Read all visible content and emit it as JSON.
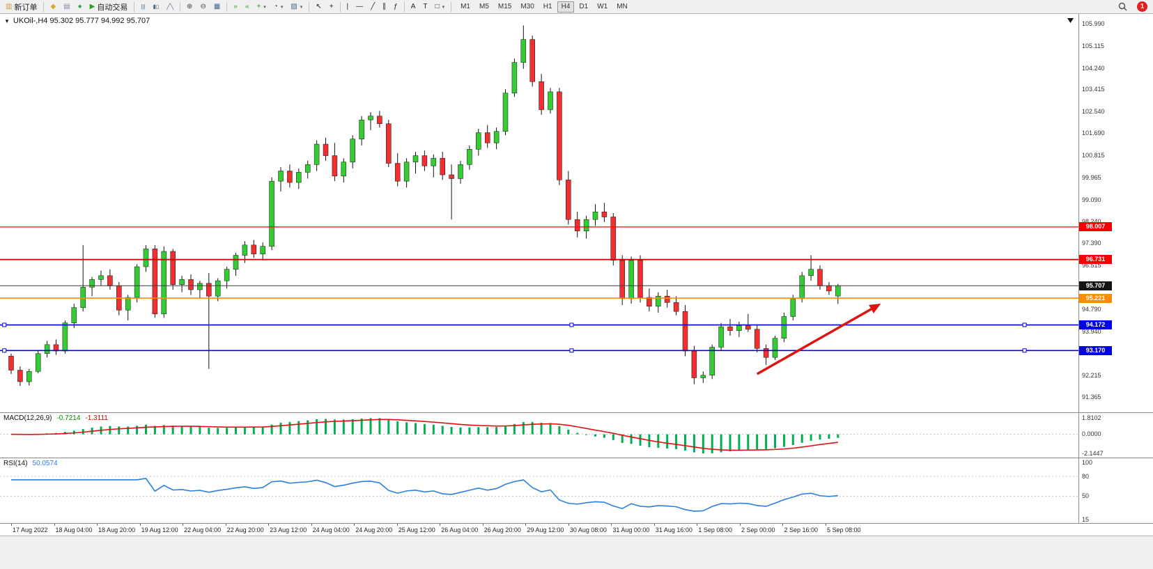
{
  "toolbar": {
    "badge_count": "1",
    "active_timeframe": "H4",
    "timeframes": [
      "M1",
      "M5",
      "M15",
      "M30",
      "H1",
      "H4",
      "D1",
      "W1",
      "MN"
    ],
    "items": [
      {
        "kind": "button",
        "name": "new-order-button",
        "icon": "new-order-icon",
        "glyph": "▥",
        "color": "#c99a3c",
        "label": "新订单"
      },
      {
        "kind": "sep"
      },
      {
        "kind": "button",
        "name": "metaeditor-button",
        "icon": "metaeditor-icon",
        "glyph": "◆",
        "color": "#d8a830"
      },
      {
        "kind": "button",
        "name": "profiles-button",
        "icon": "profiles-icon",
        "glyph": "▤",
        "color": "#7a8aa8"
      },
      {
        "kind": "button",
        "name": "refresh-button",
        "icon": "refresh-icon",
        "glyph": "●",
        "color": "#3aa03a"
      },
      {
        "kind": "button",
        "name": "autotrade-button",
        "icon": "autotrade-icon",
        "glyph": "▶",
        "color": "#2f9e2f",
        "label": "自动交易"
      },
      {
        "kind": "sep"
      },
      {
        "kind": "button",
        "name": "bar-chart-button",
        "icon": "bar-chart-icon",
        "glyph": "|||",
        "color": "#4a6a8a"
      },
      {
        "kind": "button",
        "name": "candlestick-chart-button",
        "icon": "candlestick-chart-icon",
        "glyph": "▮▯",
        "color": "#4a6a8a"
      },
      {
        "kind": "button",
        "name": "line-chart-button",
        "icon": "line-chart-icon",
        "glyph": "╱╲",
        "color": "#4a6a8a"
      },
      {
        "kind": "sep"
      },
      {
        "kind": "button",
        "name": "zoom-in-button",
        "icon": "zoom-in-icon",
        "glyph": "⊕",
        "color": "#444444"
      },
      {
        "kind": "button",
        "name": "zoom-out-button",
        "icon": "zoom-out-icon",
        "glyph": "⊖",
        "color": "#444444"
      },
      {
        "kind": "button",
        "name": "tile-windows-button",
        "icon": "tile-windows-icon",
        "glyph": "▦",
        "color": "#4a6a8a"
      },
      {
        "kind": "sep"
      },
      {
        "kind": "button",
        "name": "auto-scroll-button",
        "icon": "auto-scroll-icon",
        "glyph": "»",
        "color": "#2f9e2f"
      },
      {
        "kind": "button",
        "name": "chart-shift-button",
        "icon": "chart-shift-icon",
        "glyph": "«",
        "color": "#2f9e2f"
      },
      {
        "kind": "button",
        "name": "indicators-button",
        "icon": "indicators-icon",
        "glyph": "+",
        "color": "#1f9e1f",
        "dropdown": true
      },
      {
        "kind": "button",
        "name": "periods-button",
        "icon": "periods-clock-icon",
        "glyph": "◔",
        "color": "#444444",
        "dropdown": true
      },
      {
        "kind": "button",
        "name": "templates-button",
        "icon": "templates-icon",
        "glyph": "▨",
        "color": "#4a6a8a",
        "dropdown": true
      },
      {
        "kind": "sep"
      },
      {
        "kind": "button",
        "name": "cursor-button",
        "icon": "cursor-icon",
        "glyph": "↖",
        "color": "#222222"
      },
      {
        "kind": "button",
        "name": "crosshair-button",
        "icon": "crosshair-icon",
        "glyph": "+",
        "color": "#222222"
      },
      {
        "kind": "sep"
      },
      {
        "kind": "button",
        "name": "vertical-line-button",
        "icon": "vertical-line-icon",
        "glyph": "|",
        "color": "#222222"
      },
      {
        "kind": "button",
        "name": "horizontal-line-button",
        "icon": "horizontal-line-icon",
        "glyph": "—",
        "color": "#222222"
      },
      {
        "kind": "button",
        "name": "trendline-button",
        "icon": "trendline-icon",
        "glyph": "╱",
        "color": "#222222"
      },
      {
        "kind": "button",
        "name": "channel-button",
        "icon": "channel-icon",
        "glyph": "∥",
        "color": "#222222"
      },
      {
        "kind": "button",
        "name": "fibonacci-button",
        "icon": "fibonacci-icon",
        "glyph": "ƒ",
        "color": "#222222"
      },
      {
        "kind": "sep"
      },
      {
        "kind": "button",
        "name": "text-button",
        "icon": "text-icon",
        "glyph": "A",
        "color": "#222222"
      },
      {
        "kind": "button",
        "name": "text-label-button",
        "icon": "text-label-icon",
        "glyph": "T",
        "color": "#222222"
      },
      {
        "kind": "button",
        "name": "shapes-button",
        "icon": "shapes-icon",
        "glyph": "□",
        "color": "#222222",
        "dropdown": true
      },
      {
        "kind": "sep"
      }
    ]
  },
  "chart": {
    "symbol": "UKOil-",
    "period": "H4",
    "header": "UKOil-,H4 95.302 95.777 94.992 95.707"
  },
  "chart_data": {
    "type": "candlestick",
    "symbol": "UKOil-",
    "timeframe": "H4",
    "ohlc_current": [
      95.302,
      95.777,
      94.992,
      95.707
    ],
    "ylim": [
      90.75,
      106.35
    ],
    "colors": {
      "up": "#33cc33",
      "down": "#f03030",
      "wick": "#111111",
      "macd_hist": "#00b050",
      "macd_signal": "#e01010",
      "rsi_line": "#2a7fe0",
      "arrow": "#dc1414"
    },
    "candles": [
      [
        92.95,
        93.05,
        92.25,
        92.4
      ],
      [
        92.4,
        92.55,
        91.78,
        91.95
      ],
      [
        91.95,
        92.45,
        91.8,
        92.35
      ],
      [
        92.35,
        93.15,
        92.28,
        93.05
      ],
      [
        93.05,
        93.55,
        92.9,
        93.4
      ],
      [
        93.4,
        93.6,
        93.0,
        93.15
      ],
      [
        93.15,
        94.35,
        93.05,
        94.25
      ],
      [
        94.25,
        95.0,
        94.05,
        94.85
      ],
      [
        94.85,
        97.3,
        94.7,
        95.65
      ],
      [
        95.65,
        96.05,
        95.3,
        95.95
      ],
      [
        95.95,
        96.3,
        95.7,
        96.1
      ],
      [
        96.1,
        96.35,
        95.55,
        95.7
      ],
      [
        95.7,
        95.85,
        94.55,
        94.75
      ],
      [
        94.75,
        95.35,
        94.35,
        95.25
      ],
      [
        95.25,
        96.55,
        95.05,
        96.45
      ],
      [
        96.45,
        97.3,
        96.25,
        97.15
      ],
      [
        97.15,
        97.3,
        94.45,
        94.6
      ],
      [
        94.6,
        97.25,
        94.45,
        97.05
      ],
      [
        97.05,
        97.15,
        95.55,
        95.75
      ],
      [
        95.75,
        96.1,
        95.45,
        95.95
      ],
      [
        95.95,
        96.15,
        95.35,
        95.55
      ],
      [
        95.55,
        95.9,
        95.2,
        95.8
      ],
      [
        95.8,
        96.2,
        92.45,
        95.3
      ],
      [
        95.3,
        96.0,
        95.1,
        95.9
      ],
      [
        95.9,
        96.45,
        95.6,
        96.35
      ],
      [
        96.35,
        97.0,
        96.1,
        96.9
      ],
      [
        96.9,
        97.45,
        96.6,
        97.3
      ],
      [
        97.3,
        97.5,
        96.8,
        96.95
      ],
      [
        96.95,
        97.4,
        96.7,
        97.25
      ],
      [
        97.25,
        99.95,
        97.1,
        99.8
      ],
      [
        99.8,
        100.35,
        99.4,
        100.2
      ],
      [
        100.2,
        100.45,
        99.55,
        99.75
      ],
      [
        99.75,
        100.3,
        99.5,
        100.15
      ],
      [
        100.15,
        100.6,
        99.9,
        100.45
      ],
      [
        100.45,
        101.4,
        100.2,
        101.25
      ],
      [
        101.25,
        101.5,
        100.6,
        100.8
      ],
      [
        100.8,
        101.3,
        99.8,
        100.0
      ],
      [
        100.0,
        100.7,
        99.75,
        100.55
      ],
      [
        100.55,
        101.6,
        100.3,
        101.45
      ],
      [
        101.45,
        102.35,
        101.2,
        102.2
      ],
      [
        102.2,
        102.5,
        101.8,
        102.35
      ],
      [
        102.35,
        102.55,
        101.9,
        102.05
      ],
      [
        102.05,
        102.2,
        100.35,
        100.5
      ],
      [
        100.5,
        100.9,
        99.6,
        99.8
      ],
      [
        99.8,
        100.7,
        99.55,
        100.55
      ],
      [
        100.55,
        100.95,
        100.1,
        100.8
      ],
      [
        100.8,
        101.0,
        100.2,
        100.4
      ],
      [
        100.4,
        100.85,
        99.95,
        100.7
      ],
      [
        100.7,
        100.95,
        99.85,
        100.05
      ],
      [
        100.05,
        100.45,
        98.3,
        99.9
      ],
      [
        99.9,
        100.6,
        99.7,
        100.45
      ],
      [
        100.45,
        101.2,
        100.25,
        101.05
      ],
      [
        101.05,
        101.85,
        100.8,
        101.7
      ],
      [
        101.7,
        102.0,
        101.1,
        101.3
      ],
      [
        101.3,
        101.9,
        101.05,
        101.75
      ],
      [
        101.75,
        103.4,
        101.6,
        103.25
      ],
      [
        103.25,
        104.6,
        103.1,
        104.45
      ],
      [
        104.45,
        105.9,
        104.2,
        105.35
      ],
      [
        105.35,
        105.5,
        103.5,
        103.7
      ],
      [
        103.7,
        104.0,
        102.4,
        102.6
      ],
      [
        102.6,
        103.45,
        102.45,
        103.3
      ],
      [
        103.3,
        103.45,
        99.65,
        99.85
      ],
      [
        99.85,
        100.2,
        98.1,
        98.3
      ],
      [
        98.3,
        98.6,
        97.6,
        97.85
      ],
      [
        97.85,
        98.45,
        97.55,
        98.3
      ],
      [
        98.3,
        98.9,
        98.05,
        98.6
      ],
      [
        98.6,
        98.95,
        98.2,
        98.4
      ],
      [
        98.4,
        98.55,
        96.5,
        96.7
      ],
      [
        96.7,
        96.9,
        94.95,
        95.2
      ],
      [
        95.2,
        96.85,
        95.0,
        96.7
      ],
      [
        96.7,
        96.9,
        95.05,
        95.25
      ],
      [
        95.25,
        95.6,
        94.7,
        94.9
      ],
      [
        94.9,
        95.45,
        94.65,
        95.3
      ],
      [
        95.3,
        95.55,
        94.85,
        95.05
      ],
      [
        95.05,
        95.3,
        94.55,
        94.7
      ],
      [
        94.7,
        94.95,
        92.95,
        93.15
      ],
      [
        93.15,
        93.35,
        91.85,
        92.1
      ],
      [
        92.1,
        92.35,
        91.9,
        92.2
      ],
      [
        92.2,
        93.4,
        92.05,
        93.3
      ],
      [
        93.3,
        94.25,
        93.15,
        94.1
      ],
      [
        94.1,
        94.4,
        93.75,
        93.95
      ],
      [
        93.95,
        94.3,
        93.7,
        94.15
      ],
      [
        94.15,
        94.6,
        93.9,
        94.0
      ],
      [
        94.0,
        94.2,
        93.1,
        93.25
      ],
      [
        93.25,
        93.4,
        92.6,
        92.9
      ],
      [
        92.9,
        93.75,
        92.8,
        93.65
      ],
      [
        93.65,
        94.65,
        93.5,
        94.5
      ],
      [
        94.5,
        95.35,
        94.35,
        95.2
      ],
      [
        95.2,
        96.25,
        95.05,
        96.1
      ],
      [
        96.1,
        96.9,
        95.9,
        96.35
      ],
      [
        96.35,
        96.5,
        95.55,
        95.7
      ],
      [
        95.7,
        95.85,
        95.35,
        95.5
      ],
      [
        95.302,
        95.777,
        94.992,
        95.707
      ]
    ],
    "levels": [
      {
        "price": 98.007,
        "color": "#ff0000",
        "width": 1.2,
        "handles": false
      },
      {
        "price": 96.731,
        "color": "#d00000",
        "width": 1.8,
        "handles": false
      },
      {
        "price": 95.707,
        "color": "#3a3a3a",
        "width": 1.0,
        "handles": false
      },
      {
        "price": 95.221,
        "color": "#ff8c00",
        "width": 1.6,
        "handles": false
      },
      {
        "price": 94.172,
        "color": "#0000dd",
        "width": 1.6,
        "handles": true
      },
      {
        "price": 93.17,
        "color": "#0000dd",
        "width": 1.6,
        "handles": true
      }
    ],
    "price_tags": [
      {
        "text": "98.007",
        "price": 98.007,
        "bg": "#f50000"
      },
      {
        "text": "96.731",
        "price": 96.731,
        "bg": "#f50000"
      },
      {
        "text": "95.707",
        "price": 95.707,
        "bg": "#141414"
      },
      {
        "text": "95.221",
        "price": 95.221,
        "bg": "#ff8c00"
      },
      {
        "text": "94.172",
        "price": 94.172,
        "bg": "#0000e0"
      },
      {
        "text": "93.170",
        "price": 93.17,
        "bg": "#0000e0"
      }
    ],
    "price_axis_labels": [
      "105.990",
      "105.115",
      "104.240",
      "103.415",
      "102.540",
      "101.690",
      "100.815",
      "99.965",
      "99.090",
      "98.240",
      "97.390",
      "96.515",
      "94.790",
      "93.940",
      "92.215",
      "91.365"
    ],
    "arrow": {
      "from_index": 83,
      "from_price": 92.25,
      "to_index": 96.5,
      "to_price": 94.95
    },
    "macd": {
      "label": "MACD(12,26,9)",
      "value_main": "-0.7214",
      "value_signal": "-1.3111",
      "fast": 12,
      "slow": 26,
      "signal": 9,
      "axis": [
        "1.8102",
        "0.0000",
        "-2.1447"
      ]
    },
    "rsi": {
      "label": "RSI(14)",
      "value": "50.0574",
      "period": 14,
      "levels": [
        80,
        50
      ],
      "axis": [
        {
          "text": "100",
          "value": 100
        },
        {
          "text": "80",
          "value": 80
        },
        {
          "text": "50",
          "value": 50
        },
        {
          "text": "15",
          "value": 15
        }
      ]
    },
    "time_labels": [
      "17 Aug 2022",
      "18 Aug 04:00",
      "18 Aug 20:00",
      "19 Aug 12:00",
      "22 Aug 04:00",
      "22 Aug 20:00",
      "23 Aug 12:00",
      "24 Aug 04:00",
      "24 Aug 20:00",
      "25 Aug 12:00",
      "26 Aug 04:00",
      "26 Aug 20:00",
      "29 Aug 12:00",
      "30 Aug 08:00",
      "31 Aug 00:00",
      "31 Aug 16:00",
      "1 Sep 08:00",
      "2 Sep 00:00",
      "2 Sep 16:00",
      "5 Sep 08:00"
    ]
  }
}
